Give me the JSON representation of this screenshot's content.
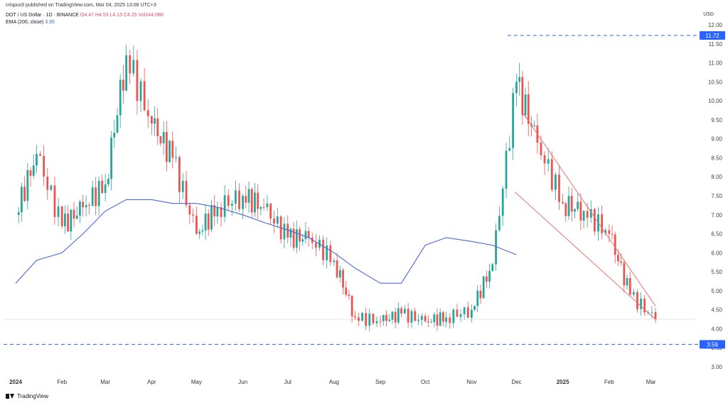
{
  "header": {
    "published": "crispus9 published on TradingView.com, Mar 04, 2025 13:08 UTC+3",
    "symbol": "DOT / US Dollar · 1D · BINANCE",
    "ohlc": "O4.47  H4.53  L4.13  C4.25  Vol144.08K",
    "ema_label": "EMA (200, close)",
    "ema_value": "3.95",
    "currency": "USD"
  },
  "footer": {
    "brand": "TradingView",
    "icon": "tradingview-logo-icon"
  },
  "colors": {
    "up": "#26a69a",
    "down": "#ef5350",
    "ema": "#4a67d8",
    "level": "#2962ff",
    "channel": "#e57373"
  },
  "chart_data": {
    "type": "line",
    "title": "DOT / US Dollar · 1D · BINANCE",
    "ylabel": "USD",
    "ylim": [
      3.0,
      12.0
    ],
    "y_ticks": [
      "12.00",
      "11.50",
      "11.00",
      "10.50",
      "10.00",
      "9.50",
      "9.00",
      "8.50",
      "8.00",
      "7.50",
      "7.00",
      "6.50",
      "6.00",
      "5.50",
      "5.00",
      "4.50",
      "4.00",
      "3.50",
      "3.00"
    ],
    "x_tick_labels": [
      "2024",
      "Feb",
      "Mar",
      "Apr",
      "May",
      "Jun",
      "Jul",
      "Aug",
      "Sep",
      "Oct",
      "Nov",
      "Dec",
      "2025",
      "Feb",
      "Mar"
    ],
    "x_dates": [
      "2024-01-01",
      "2024-01-15",
      "2024-02-01",
      "2024-02-15",
      "2024-03-01",
      "2024-03-15",
      "2024-04-01",
      "2024-04-15",
      "2024-05-01",
      "2024-05-15",
      "2024-06-01",
      "2024-06-15",
      "2024-07-01",
      "2024-07-15",
      "2024-08-01",
      "2024-08-15",
      "2024-09-01",
      "2024-09-15",
      "2024-10-01",
      "2024-10-15",
      "2024-11-01",
      "2024-11-15",
      "2024-12-01",
      "2024-12-15",
      "2025-01-01",
      "2025-01-15",
      "2025-02-01",
      "2025-02-15",
      "2025-03-04"
    ],
    "series": [
      {
        "name": "DOT / US Dollar",
        "type": "line",
        "values": [
          7.0,
          8.6,
          6.7,
          7.2,
          7.8,
          11.2,
          9.4,
          8.5,
          6.5,
          7.2,
          7.5,
          7.2,
          6.4,
          6.4,
          5.8,
          4.3,
          4.2,
          4.4,
          4.2,
          4.3,
          4.5,
          5.7,
          10.5,
          8.9,
          7.3,
          7.1,
          6.5,
          4.9,
          4.25
        ]
      },
      {
        "name": "EMA (200, close)",
        "type": "line",
        "values": [
          5.2,
          5.8,
          6.0,
          6.5,
          7.1,
          7.4,
          7.4,
          7.3,
          7.3,
          7.2,
          7.0,
          6.8,
          6.6,
          6.4,
          6.0,
          5.6,
          5.2,
          5.2,
          6.2,
          6.4,
          6.3,
          6.2,
          5.95,
          null,
          null,
          null,
          null,
          null,
          null
        ]
      }
    ],
    "horizontal_levels": [
      {
        "value": 11.72,
        "label": "11.72"
      },
      {
        "value": 3.59,
        "label": "3.59"
      }
    ],
    "trendlines": [
      {
        "name": "falling-wedge-upper",
        "from": [
          "2024-12-05",
          9.7
        ],
        "to": [
          "2025-03-04",
          4.6
        ]
      },
      {
        "name": "falling-wedge-lower",
        "from": [
          "2024-11-30",
          7.6
        ],
        "to": [
          "2025-03-04",
          4.25
        ]
      }
    ],
    "grid": false,
    "legend": "top-left"
  }
}
